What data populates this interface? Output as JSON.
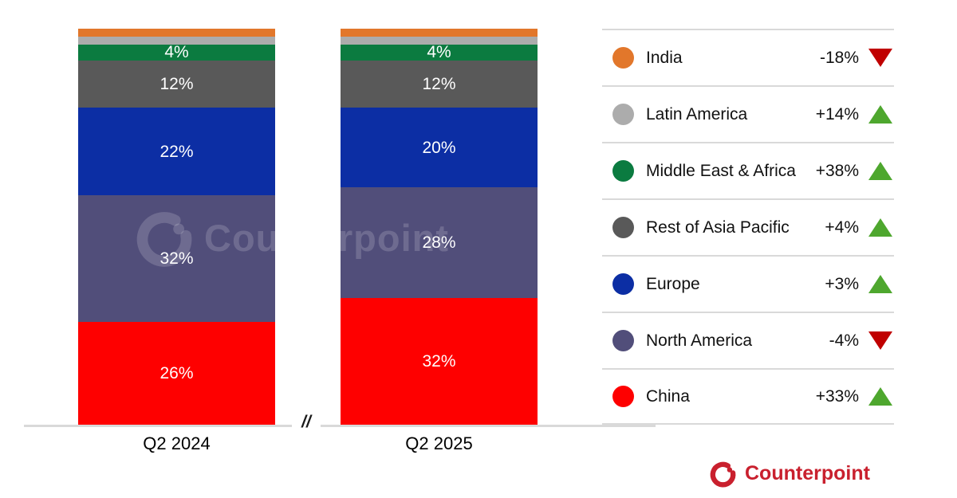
{
  "chart_data": {
    "type": "bar",
    "subtype": "stacked-100pct",
    "categories": [
      "Q2 2024",
      "Q2 2025"
    ],
    "unit": "%",
    "axis_break_glyph": "//",
    "stack_order": "top-to-bottom",
    "series": [
      {
        "name": "India",
        "color": "#E2772B",
        "values": [
          2,
          2
        ],
        "segment_labels": [
          "",
          ""
        ],
        "yoy_change": "-18%",
        "trend": "down"
      },
      {
        "name": "Latin America",
        "color": "#ACACAC",
        "values": [
          2,
          2
        ],
        "segment_labels": [
          "",
          ""
        ],
        "yoy_change": "+14%",
        "trend": "up"
      },
      {
        "name": "Middle East & Africa",
        "color": "#0B7B40",
        "values": [
          4,
          4
        ],
        "segment_labels": [
          "4%",
          "4%"
        ],
        "yoy_change": "+38%",
        "trend": "up"
      },
      {
        "name": "Rest of Asia Pacific",
        "color": "#595959",
        "values": [
          12,
          12
        ],
        "segment_labels": [
          "12%",
          "12%"
        ],
        "yoy_change": "+4%",
        "trend": "up"
      },
      {
        "name": "Europe",
        "color": "#0C2EA4",
        "values": [
          22,
          20
        ],
        "segment_labels": [
          "22%",
          "20%"
        ],
        "yoy_change": "+3%",
        "trend": "up"
      },
      {
        "name": "North America",
        "color": "#514E7A",
        "values": [
          32,
          28
        ],
        "segment_labels": [
          "32%",
          "28%"
        ],
        "yoy_change": "-4%",
        "trend": "down"
      },
      {
        "name": "China",
        "color": "#FE0000",
        "values": [
          26,
          32
        ],
        "segment_labels": [
          "26%",
          "32%"
        ],
        "yoy_change": "+33%",
        "trend": "up"
      }
    ],
    "legend_position": "right",
    "grid": false
  },
  "colors": {
    "trend_up": "#4EA72E",
    "trend_down": "#C00000",
    "axis_line": "#D9D9D9",
    "legend_divider": "#D9D9D9",
    "brand_red": "#C9202E",
    "segment_label_text": "#FFFFFF"
  },
  "watermark": {
    "text": "Counterpoint"
  },
  "footer": {
    "brand": "Counterpoint"
  }
}
